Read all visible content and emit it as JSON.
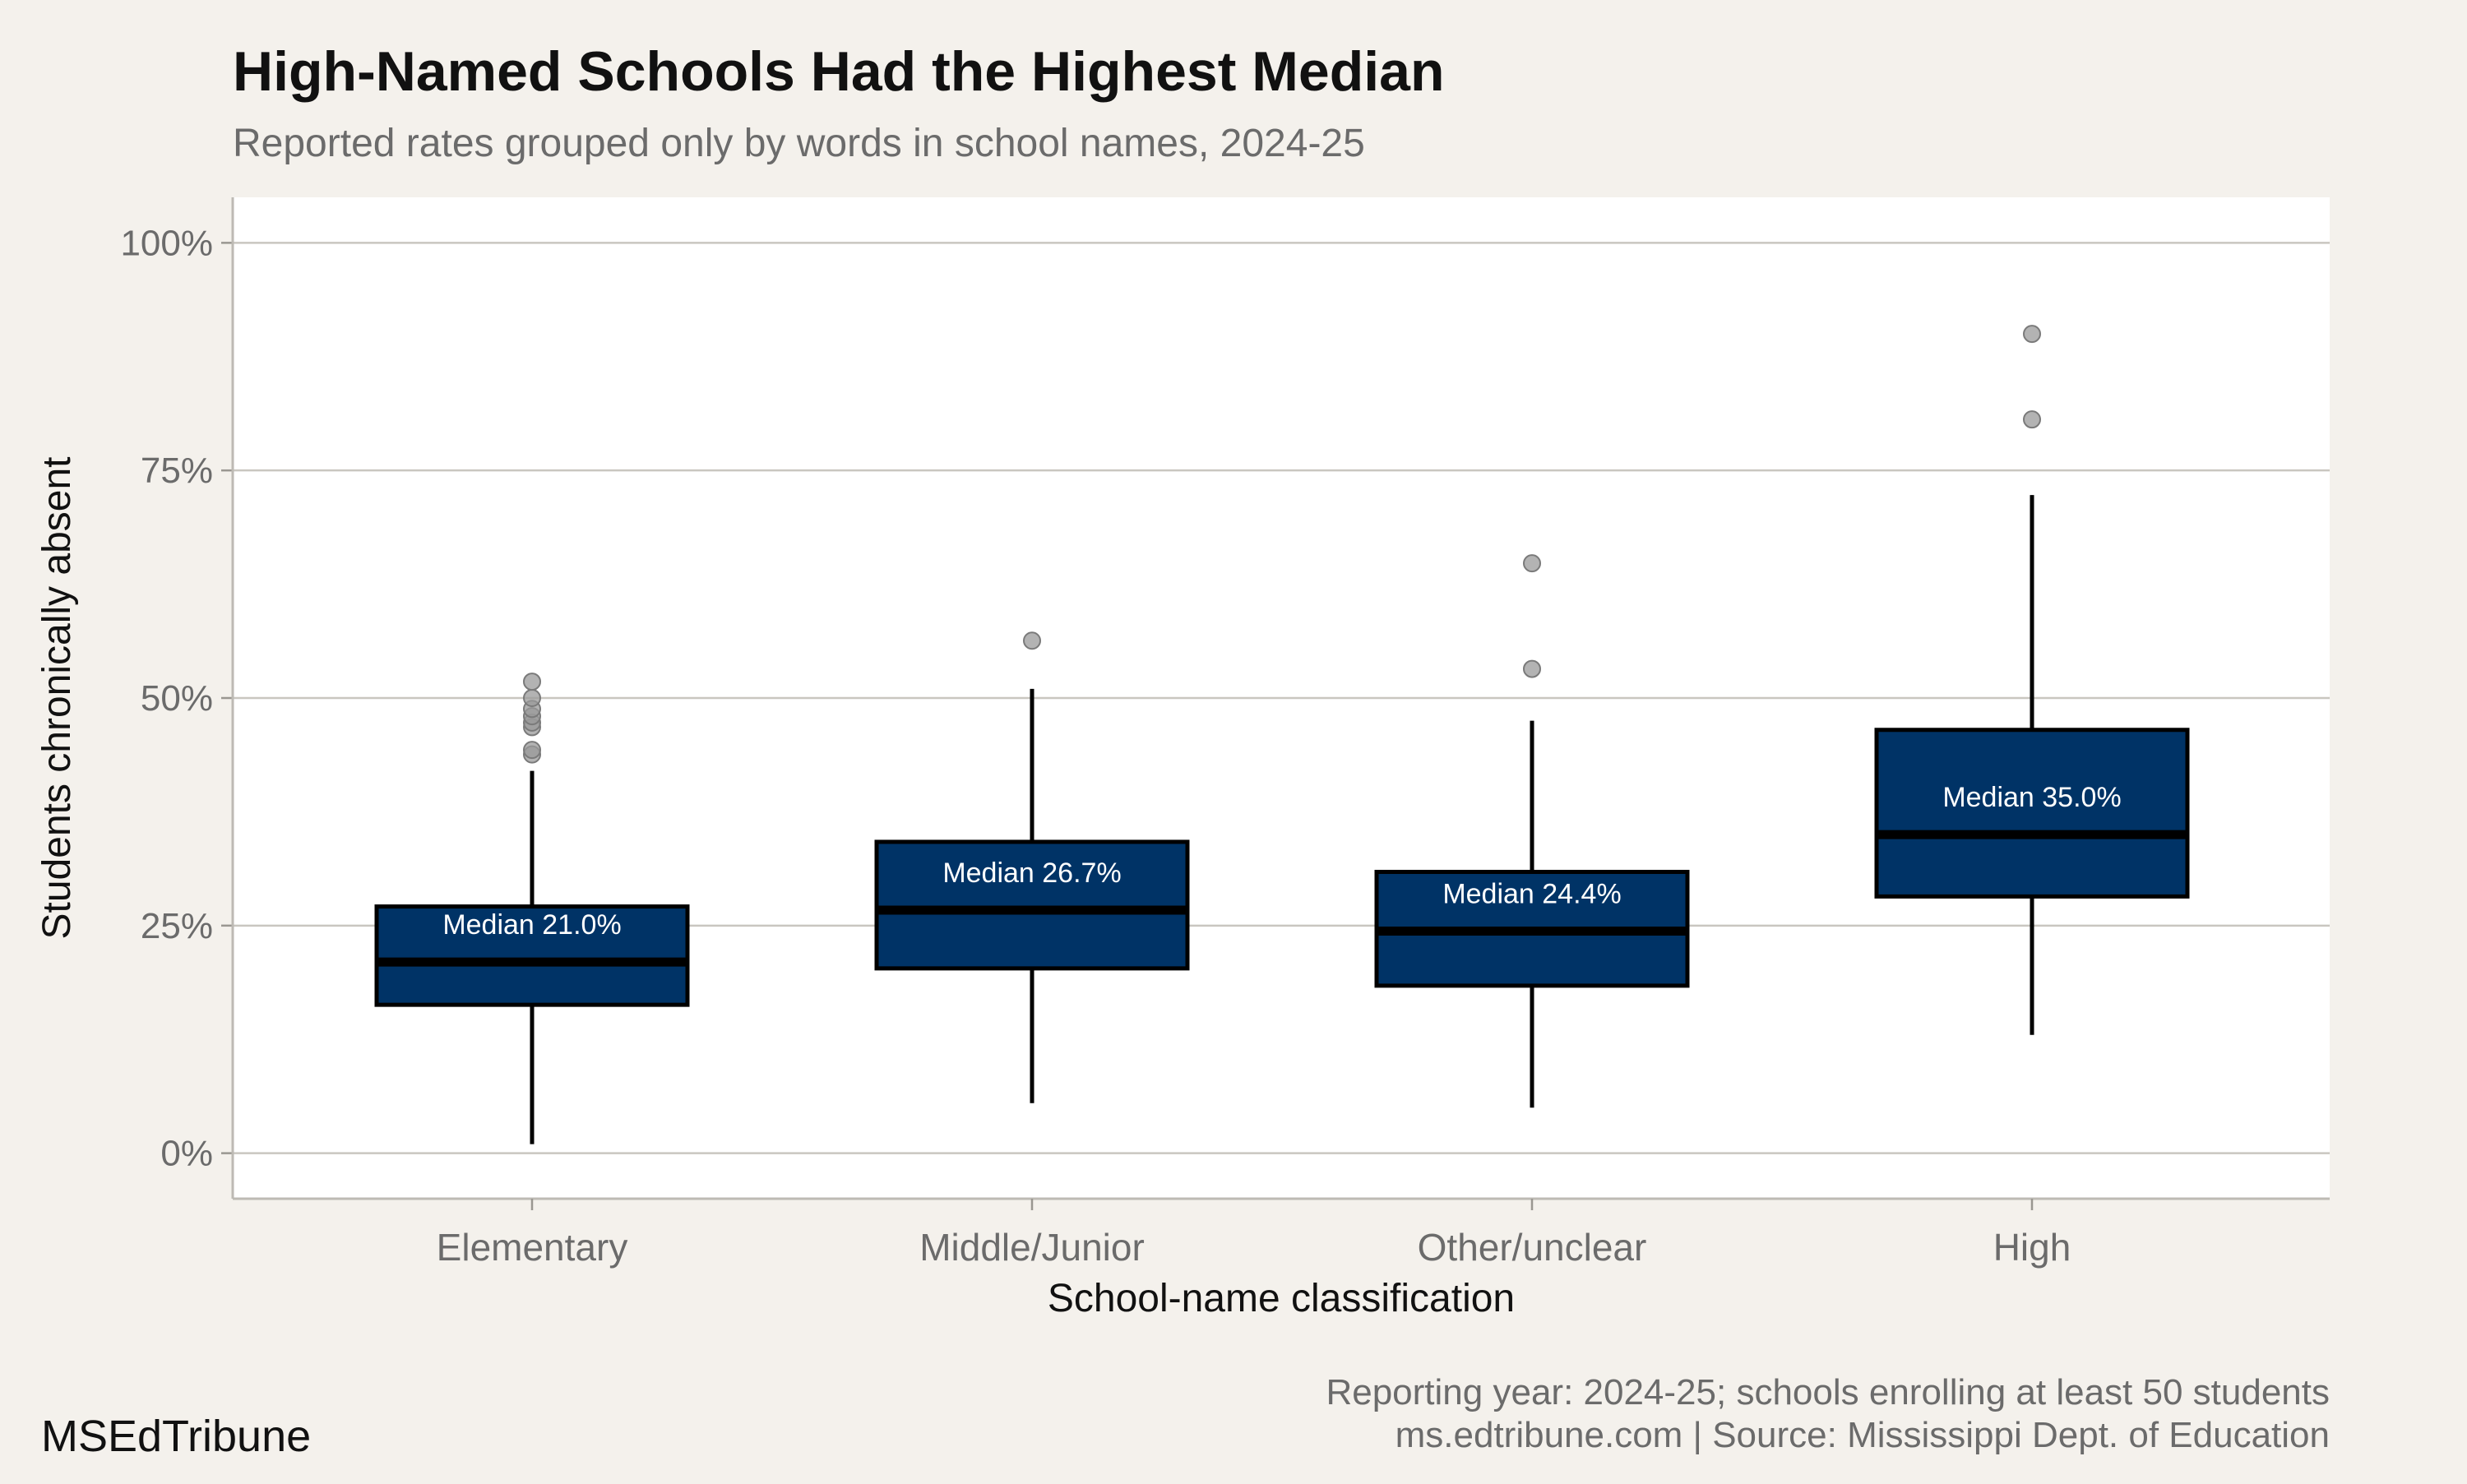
{
  "chart_data": {
    "type": "boxplot",
    "title": "High-Named Schools Had the Highest Median",
    "subtitle": "Reported rates grouped only by words in school names, 2024-25",
    "xlabel": "School-name classification",
    "ylabel": "Students chronically absent",
    "ylim": [
      -5,
      105
    ],
    "yticks": [
      0,
      25,
      50,
      75,
      100
    ],
    "ytick_labels": [
      "0%",
      "25%",
      "50%",
      "75%",
      "100%"
    ],
    "grid": "horizontal",
    "colors": {
      "box_fill": "#003366",
      "box_stroke": "#000000",
      "outlier": "#999999",
      "grid": "#c9c6c0",
      "panel": "#ffffff",
      "background": "#f4f1ec"
    },
    "categories": [
      "Elementary",
      "Middle/Junior",
      "Other/unclear",
      "High"
    ],
    "boxes": [
      {
        "category": "Elementary",
        "whisker_low": 1.0,
        "q1": 16.3,
        "median": 21.0,
        "q3": 27.1,
        "whisker_high": 42.0,
        "outliers": [
          43.8,
          44.3,
          46.8,
          47.3,
          48.0,
          48.8,
          50.0,
          51.8
        ],
        "median_label": "Median 21.0%"
      },
      {
        "category": "Middle/Junior",
        "whisker_low": 5.5,
        "q1": 20.3,
        "median": 26.7,
        "q3": 34.2,
        "whisker_high": 51.0,
        "outliers": [
          56.3
        ],
        "median_label": "Median 26.7%"
      },
      {
        "category": "Other/unclear",
        "whisker_low": 5.0,
        "q1": 18.4,
        "median": 24.4,
        "q3": 30.9,
        "whisker_high": 47.5,
        "outliers": [
          53.2,
          64.8
        ],
        "median_label": "Median 24.4%"
      },
      {
        "category": "High",
        "whisker_low": 13.0,
        "q1": 28.2,
        "median": 35.0,
        "q3": 46.5,
        "whisker_high": 72.3,
        "outliers": [
          80.6,
          90.0
        ],
        "median_label": "Median 35.0%"
      }
    ]
  },
  "caption": {
    "line1": "Reporting year: 2024-25; schools enrolling at least 50 students",
    "line2": "ms.edtribune.com | Source: Mississippi Dept. of Education"
  },
  "brand": "MSEdTribune"
}
